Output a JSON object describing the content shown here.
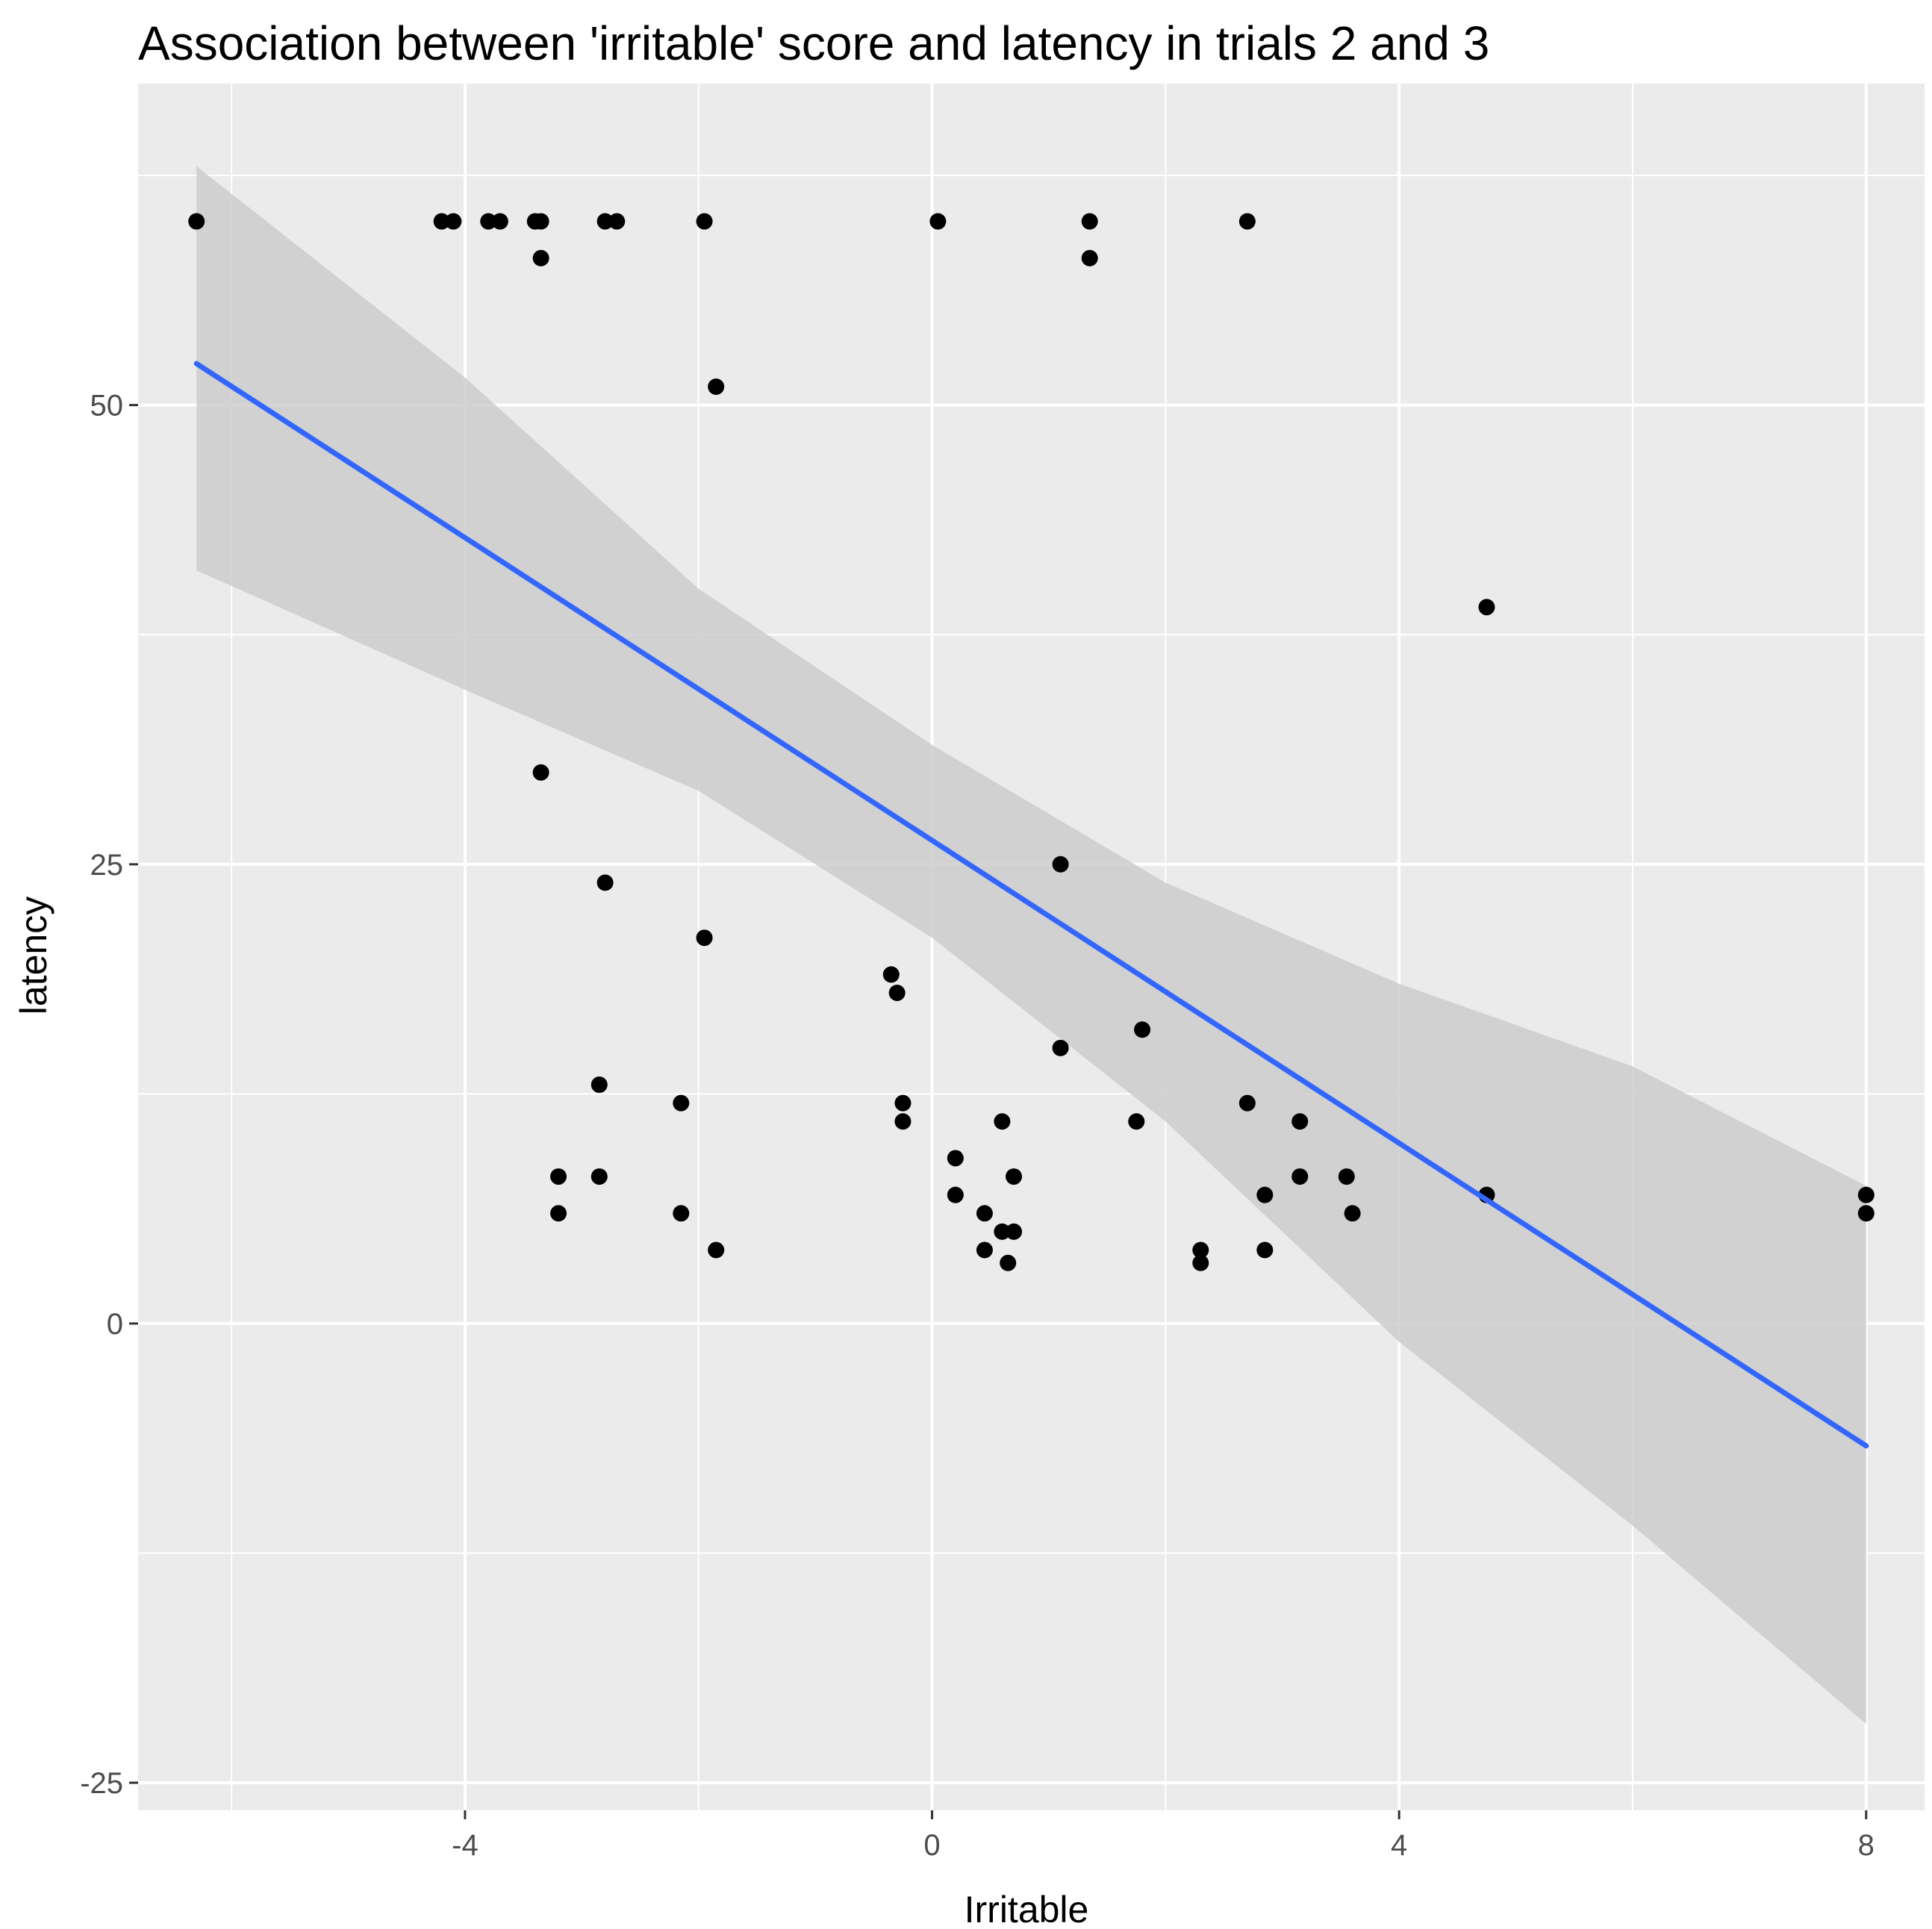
{
  "colors": {
    "panel": "#ebebeb",
    "grid_major": "#ffffff",
    "grid_minor": "#f5f5f5",
    "points": "#000000",
    "fit_line": "#3366ff",
    "ribbon": "#cccccc",
    "tick_text": "#4d4d4d",
    "tick_mark": "#333333"
  },
  "chart_data": {
    "type": "scatter",
    "title": "Association between 'irritable' score and latency in trials 2 and 3",
    "xlabel": "Irritable",
    "ylabel": "latency",
    "xlim": [
      -6.8,
      8.5
    ],
    "ylim": [
      -26.5,
      67.5
    ],
    "x_ticks": [
      -4,
      0,
      4,
      8
    ],
    "x_tick_labels": [
      "-4",
      "0",
      "4",
      "8"
    ],
    "y_ticks": [
      -25,
      0,
      25,
      50
    ],
    "y_tick_labels": [
      "-25",
      "0",
      "25",
      "50"
    ],
    "x_minor": [
      -6,
      -2,
      2,
      6
    ],
    "y_minor": [
      -12.5,
      12.5,
      37.5,
      62.5
    ],
    "grid": true,
    "points": [
      {
        "x": -6.3,
        "y": 60
      },
      {
        "x": -4.2,
        "y": 60
      },
      {
        "x": -4.1,
        "y": 60
      },
      {
        "x": -3.8,
        "y": 60
      },
      {
        "x": -3.7,
        "y": 60
      },
      {
        "x": -3.4,
        "y": 60
      },
      {
        "x": -3.35,
        "y": 60
      },
      {
        "x": -2.8,
        "y": 60
      },
      {
        "x": -2.7,
        "y": 60
      },
      {
        "x": -1.95,
        "y": 60
      },
      {
        "x": 0.05,
        "y": 60
      },
      {
        "x": 1.35,
        "y": 60
      },
      {
        "x": 2.7,
        "y": 60
      },
      {
        "x": -3.35,
        "y": 58
      },
      {
        "x": 1.35,
        "y": 58
      },
      {
        "x": -1.85,
        "y": 51
      },
      {
        "x": 4.75,
        "y": 39
      },
      {
        "x": -3.35,
        "y": 30
      },
      {
        "x": -2.8,
        "y": 24
      },
      {
        "x": 1.1,
        "y": 25
      },
      {
        "x": -1.95,
        "y": 21
      },
      {
        "x": -0.35,
        "y": 19
      },
      {
        "x": -0.3,
        "y": 18
      },
      {
        "x": 1.8,
        "y": 16
      },
      {
        "x": 1.1,
        "y": 15
      },
      {
        "x": -2.85,
        "y": 13
      },
      {
        "x": -2.15,
        "y": 12
      },
      {
        "x": -0.25,
        "y": 12
      },
      {
        "x": -0.25,
        "y": 11
      },
      {
        "x": 0.6,
        "y": 11
      },
      {
        "x": 1.75,
        "y": 11
      },
      {
        "x": 2.7,
        "y": 12
      },
      {
        "x": 3.15,
        "y": 11
      },
      {
        "x": 0.2,
        "y": 9
      },
      {
        "x": -3.2,
        "y": 8
      },
      {
        "x": -2.85,
        "y": 8
      },
      {
        "x": 0.7,
        "y": 8
      },
      {
        "x": 3.15,
        "y": 8
      },
      {
        "x": 3.55,
        "y": 8
      },
      {
        "x": 0.2,
        "y": 7
      },
      {
        "x": 2.85,
        "y": 7
      },
      {
        "x": 4.75,
        "y": 7
      },
      {
        "x": 8.0,
        "y": 7
      },
      {
        "x": -3.2,
        "y": 6
      },
      {
        "x": -2.15,
        "y": 6
      },
      {
        "x": 0.45,
        "y": 6
      },
      {
        "x": 3.6,
        "y": 6
      },
      {
        "x": 8.0,
        "y": 6
      },
      {
        "x": 0.6,
        "y": 5
      },
      {
        "x": 0.7,
        "y": 5
      },
      {
        "x": -1.85,
        "y": 4
      },
      {
        "x": 0.45,
        "y": 4
      },
      {
        "x": 2.3,
        "y": 4
      },
      {
        "x": 2.85,
        "y": 4
      },
      {
        "x": 0.65,
        "y": 3.3
      },
      {
        "x": 2.3,
        "y": 3.3
      }
    ],
    "fit": {
      "x_range": [
        -6.3,
        8.0
      ],
      "intercept": 26.3,
      "slope": -4.12
    },
    "ribbon": [
      {
        "x": -6.3,
        "lower": 41,
        "upper": 63
      },
      {
        "x": -4.0,
        "lower": 34.5,
        "upper": 51.5
      },
      {
        "x": -2.0,
        "lower": 29,
        "upper": 40
      },
      {
        "x": 0.0,
        "lower": 21,
        "upper": 31.5
      },
      {
        "x": 2.0,
        "lower": 11,
        "upper": 24
      },
      {
        "x": 4.0,
        "lower": -1,
        "upper": 18.5
      },
      {
        "x": 6.0,
        "lower": -11,
        "upper": 14
      },
      {
        "x": 8.0,
        "lower": -21.8,
        "upper": 7.5
      }
    ]
  }
}
